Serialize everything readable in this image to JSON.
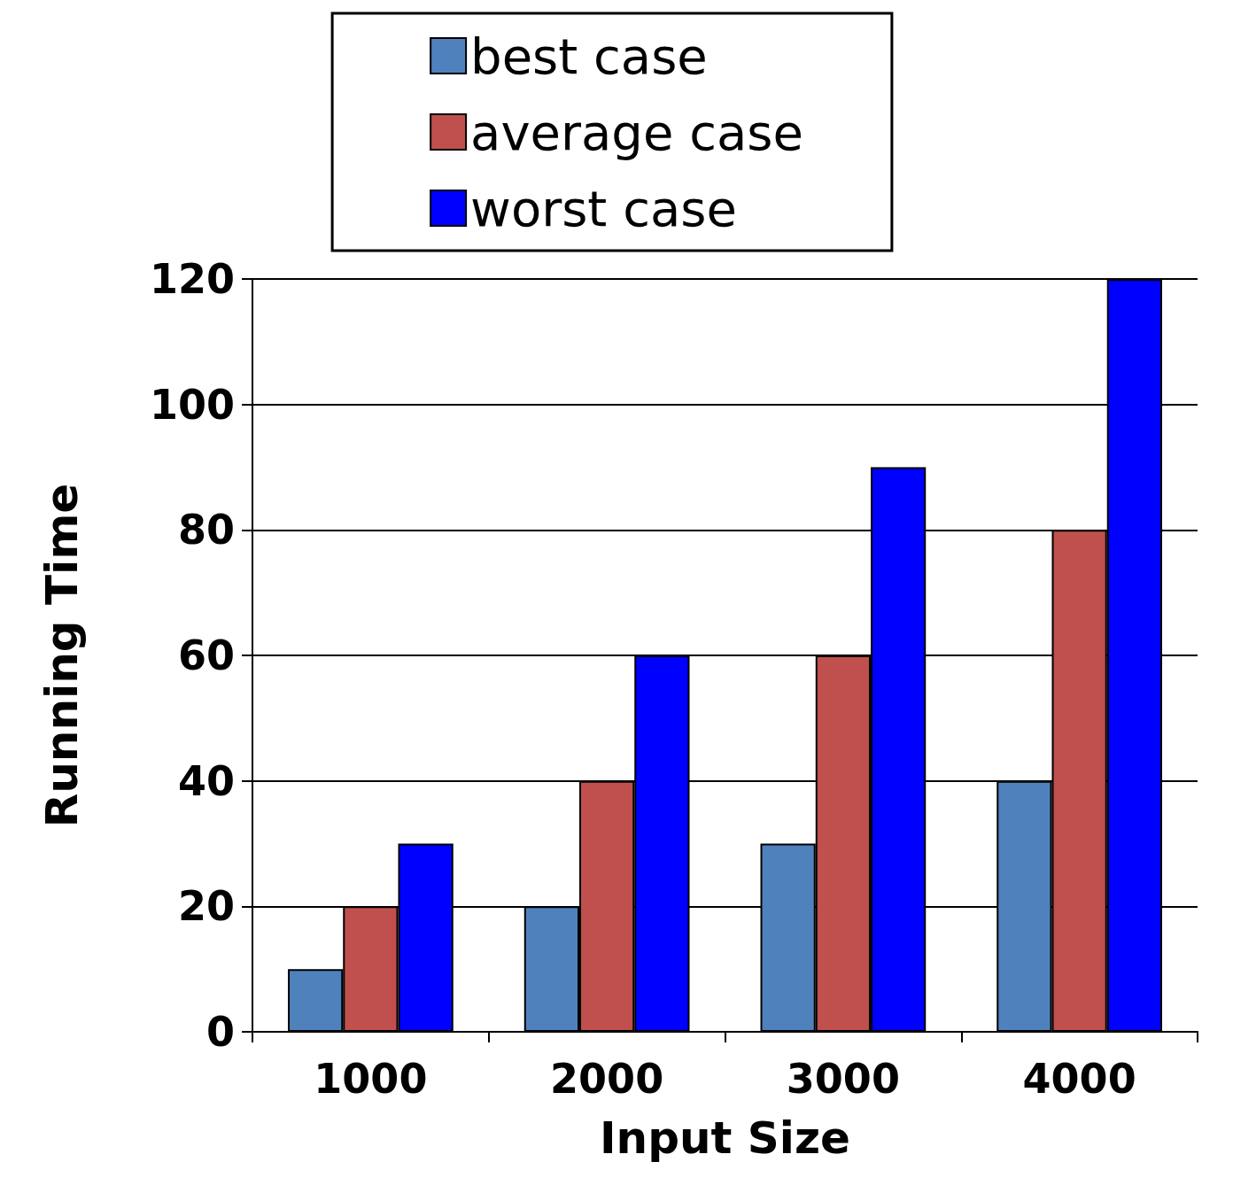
{
  "chart_data": {
    "type": "bar",
    "xlabel": "Input Size",
    "ylabel": "Running Time",
    "categories": [
      "1000",
      "2000",
      "3000",
      "4000"
    ],
    "series": [
      {
        "name": "best case",
        "color": "#4f81bd",
        "values": [
          10,
          20,
          30,
          40
        ]
      },
      {
        "name": "average case",
        "color": "#c0504d",
        "values": [
          20,
          40,
          60,
          80
        ]
      },
      {
        "name": "worst case",
        "color": "#0000ff",
        "values": [
          30,
          60,
          90,
          120
        ]
      }
    ],
    "ylim": [
      0,
      120
    ],
    "yticks": [
      0,
      20,
      40,
      60,
      80,
      100,
      120
    ],
    "grid": "y",
    "legend": "top"
  }
}
